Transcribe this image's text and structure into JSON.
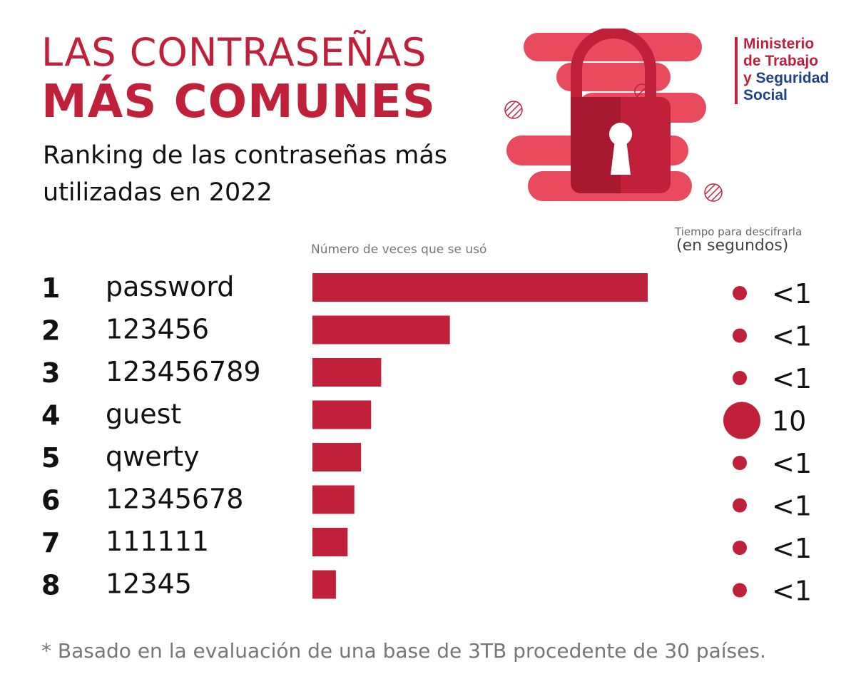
{
  "header": {
    "title_line1": "LAS CONTRASEÑAS",
    "title_line2": "MÁS COMUNES",
    "subtitle": "Ranking de las contraseñas más utilizadas en 2022"
  },
  "logo": {
    "lines": [
      "Ministerio",
      "de Trabajo",
      "y Seguridad",
      "Social"
    ],
    "colors": {
      "red": "#c1203b",
      "blue": "#1f3f8f"
    }
  },
  "illustration": {
    "icon": "padlock-icon"
  },
  "chart_data": {
    "type": "bar",
    "orientation": "horizontal",
    "bar_axis_label": "Número de veces que se usó",
    "time_label_line1": "Tiempo para descifrarla",
    "time_label_line2": "(en segundos)",
    "rows": [
      {
        "rank": "1",
        "password": "password",
        "relative_uses": 100,
        "time": "<1"
      },
      {
        "rank": "2",
        "password": "123456",
        "relative_uses": 41,
        "time": "<1"
      },
      {
        "rank": "3",
        "password": "123456789",
        "relative_uses": 20.5,
        "time": "<1"
      },
      {
        "rank": "4",
        "password": "guest",
        "relative_uses": 17.5,
        "time": "10"
      },
      {
        "rank": "5",
        "password": "qwerty",
        "relative_uses": 14.5,
        "time": "<1"
      },
      {
        "rank": "6",
        "password": "12345678",
        "relative_uses": 12.5,
        "time": "<1"
      },
      {
        "rank": "7",
        "password": "111111",
        "relative_uses": 10.5,
        "time": "<1"
      },
      {
        "rank": "8",
        "password": "12345",
        "relative_uses": 7,
        "time": "<1"
      }
    ],
    "bar_color": "#c1203b",
    "grid": false
  },
  "footnote": "* Basado en la evaluación de una base de 3TB procedente de 30 países."
}
